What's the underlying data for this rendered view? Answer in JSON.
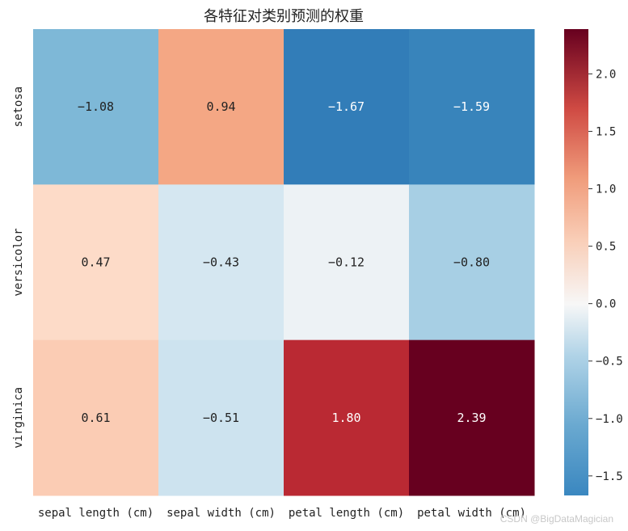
{
  "chart_data": {
    "type": "heatmap",
    "title": "各特征对类别预测的权重",
    "xlabel": "",
    "ylabel": "",
    "x_categories": [
      "sepal length (cm)",
      "sepal width (cm)",
      "petal length (cm)",
      "petal width (cm)"
    ],
    "y_categories": [
      "setosa",
      "versicolor",
      "virginica"
    ],
    "values": [
      [
        -1.08,
        0.94,
        -1.67,
        -1.59
      ],
      [
        0.47,
        -0.43,
        -0.12,
        -0.8
      ],
      [
        0.61,
        -0.51,
        1.8,
        2.39
      ]
    ],
    "annotations": [
      [
        "−1.08",
        "0.94",
        "−1.67",
        "−1.59"
      ],
      [
        "0.47",
        "−0.43",
        "−0.12",
        "−0.80"
      ],
      [
        "0.61",
        "−0.51",
        "1.80",
        "2.39"
      ]
    ],
    "colormap": "RdBu_r",
    "center": 0,
    "vmin": -1.67,
    "vmax": 2.39,
    "colorbar": {
      "ticks": [
        2.0,
        1.5,
        1.0,
        0.5,
        0.0,
        -0.5,
        -1.0,
        -1.5
      ],
      "tick_labels": [
        "2.0",
        "1.5",
        "1.0",
        "0.5",
        "0.0",
        "−0.5",
        "−1.0",
        "−1.5"
      ]
    }
  },
  "watermark": "CSDN @BigDataMagician"
}
